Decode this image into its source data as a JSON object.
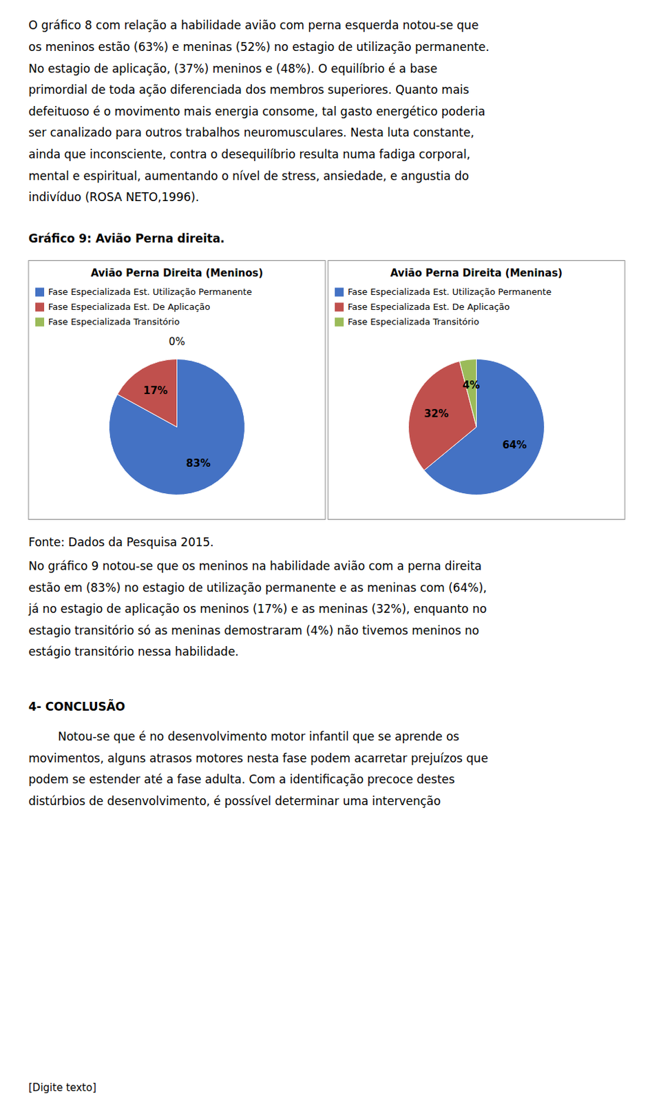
{
  "page_text": {
    "para1_lines": [
      "O gráfico 8 com relação a habilidade avião com perna esquerda notou-se que",
      "os meninos estão (63%) e meninas (52%) no estagio de utilização permanente.",
      "No estagio de aplicação, (37%) meninos e (48%). O equilíbrio é a base",
      "primordial de toda ação diferenciada dos membros superiores. Quanto mais",
      "defeituoso é o movimento mais energia consome, tal gasto energético poderia",
      "ser canalizado para outros trabalhos neuromusculares. Nesta luta constante,",
      "ainda que inconsciente, contra o desequilíbrio resulta numa fadiga corporal,",
      "mental e espiritual, aumentando o nível de stress, ansiedade, e angustia do",
      "indivíduo (ROSA NETO,1996)."
    ],
    "section_title": "Gráfico 9: Avião Perna direita.",
    "fonte": "Fonte: Dados da Pesquisa 2015.",
    "para2_lines": [
      "No gráfico 9 notou-se que os meninos na habilidade avião com a perna direita",
      "estão em (83%) no estagio de utilização permanente e as meninas com (64%),",
      "já no estagio de aplicação os meninos (17%) e as meninas (32%), enquanto no",
      "estagio transitório só as meninas demostraram (4%) não tivemos meninos no",
      "estágio transitório nessa habilidade."
    ],
    "section2_title": "4- CONCLUSÃO",
    "para3_lines": [
      "        Notou-se que é no desenvolvimento motor infantil que se aprende os",
      "movimentos, alguns atrasos motores nesta fase podem acarretar prejuízos que",
      "podem se estender até a fase adulta. Com a identificação precoce destes",
      "distúrbios de desenvolvimento, é possível determinar uma intervenção"
    ],
    "footer": "[Digite texto]"
  },
  "chart_data": [
    {
      "type": "pie",
      "title": "Avião Perna Direita (Meninos)",
      "categories": [
        "Fase Especializada Est. Utilização Permanente",
        "Fase Especializada Est. De Aplicação",
        "Fase Especializada Transitório"
      ],
      "values": [
        83,
        17,
        0
      ],
      "value_labels": [
        "83%",
        "17%",
        "0%"
      ],
      "colors": [
        "#4472C4",
        "#C0504D",
        "#9BBB59"
      ],
      "legend": "upper left",
      "data_labels": true
    },
    {
      "type": "pie",
      "title": "Avião Perna Direita (Meninas)",
      "categories": [
        "Fase Especializada Est. Utilização Permanente",
        "Fase Especializada Est. De Aplicação",
        "Fase Especializada Transitório"
      ],
      "values": [
        64,
        32,
        4
      ],
      "value_labels": [
        "64%",
        "32%",
        "4%"
      ],
      "colors": [
        "#4472C4",
        "#C0504D",
        "#9BBB59"
      ],
      "legend": "upper left",
      "data_labels": true
    }
  ]
}
